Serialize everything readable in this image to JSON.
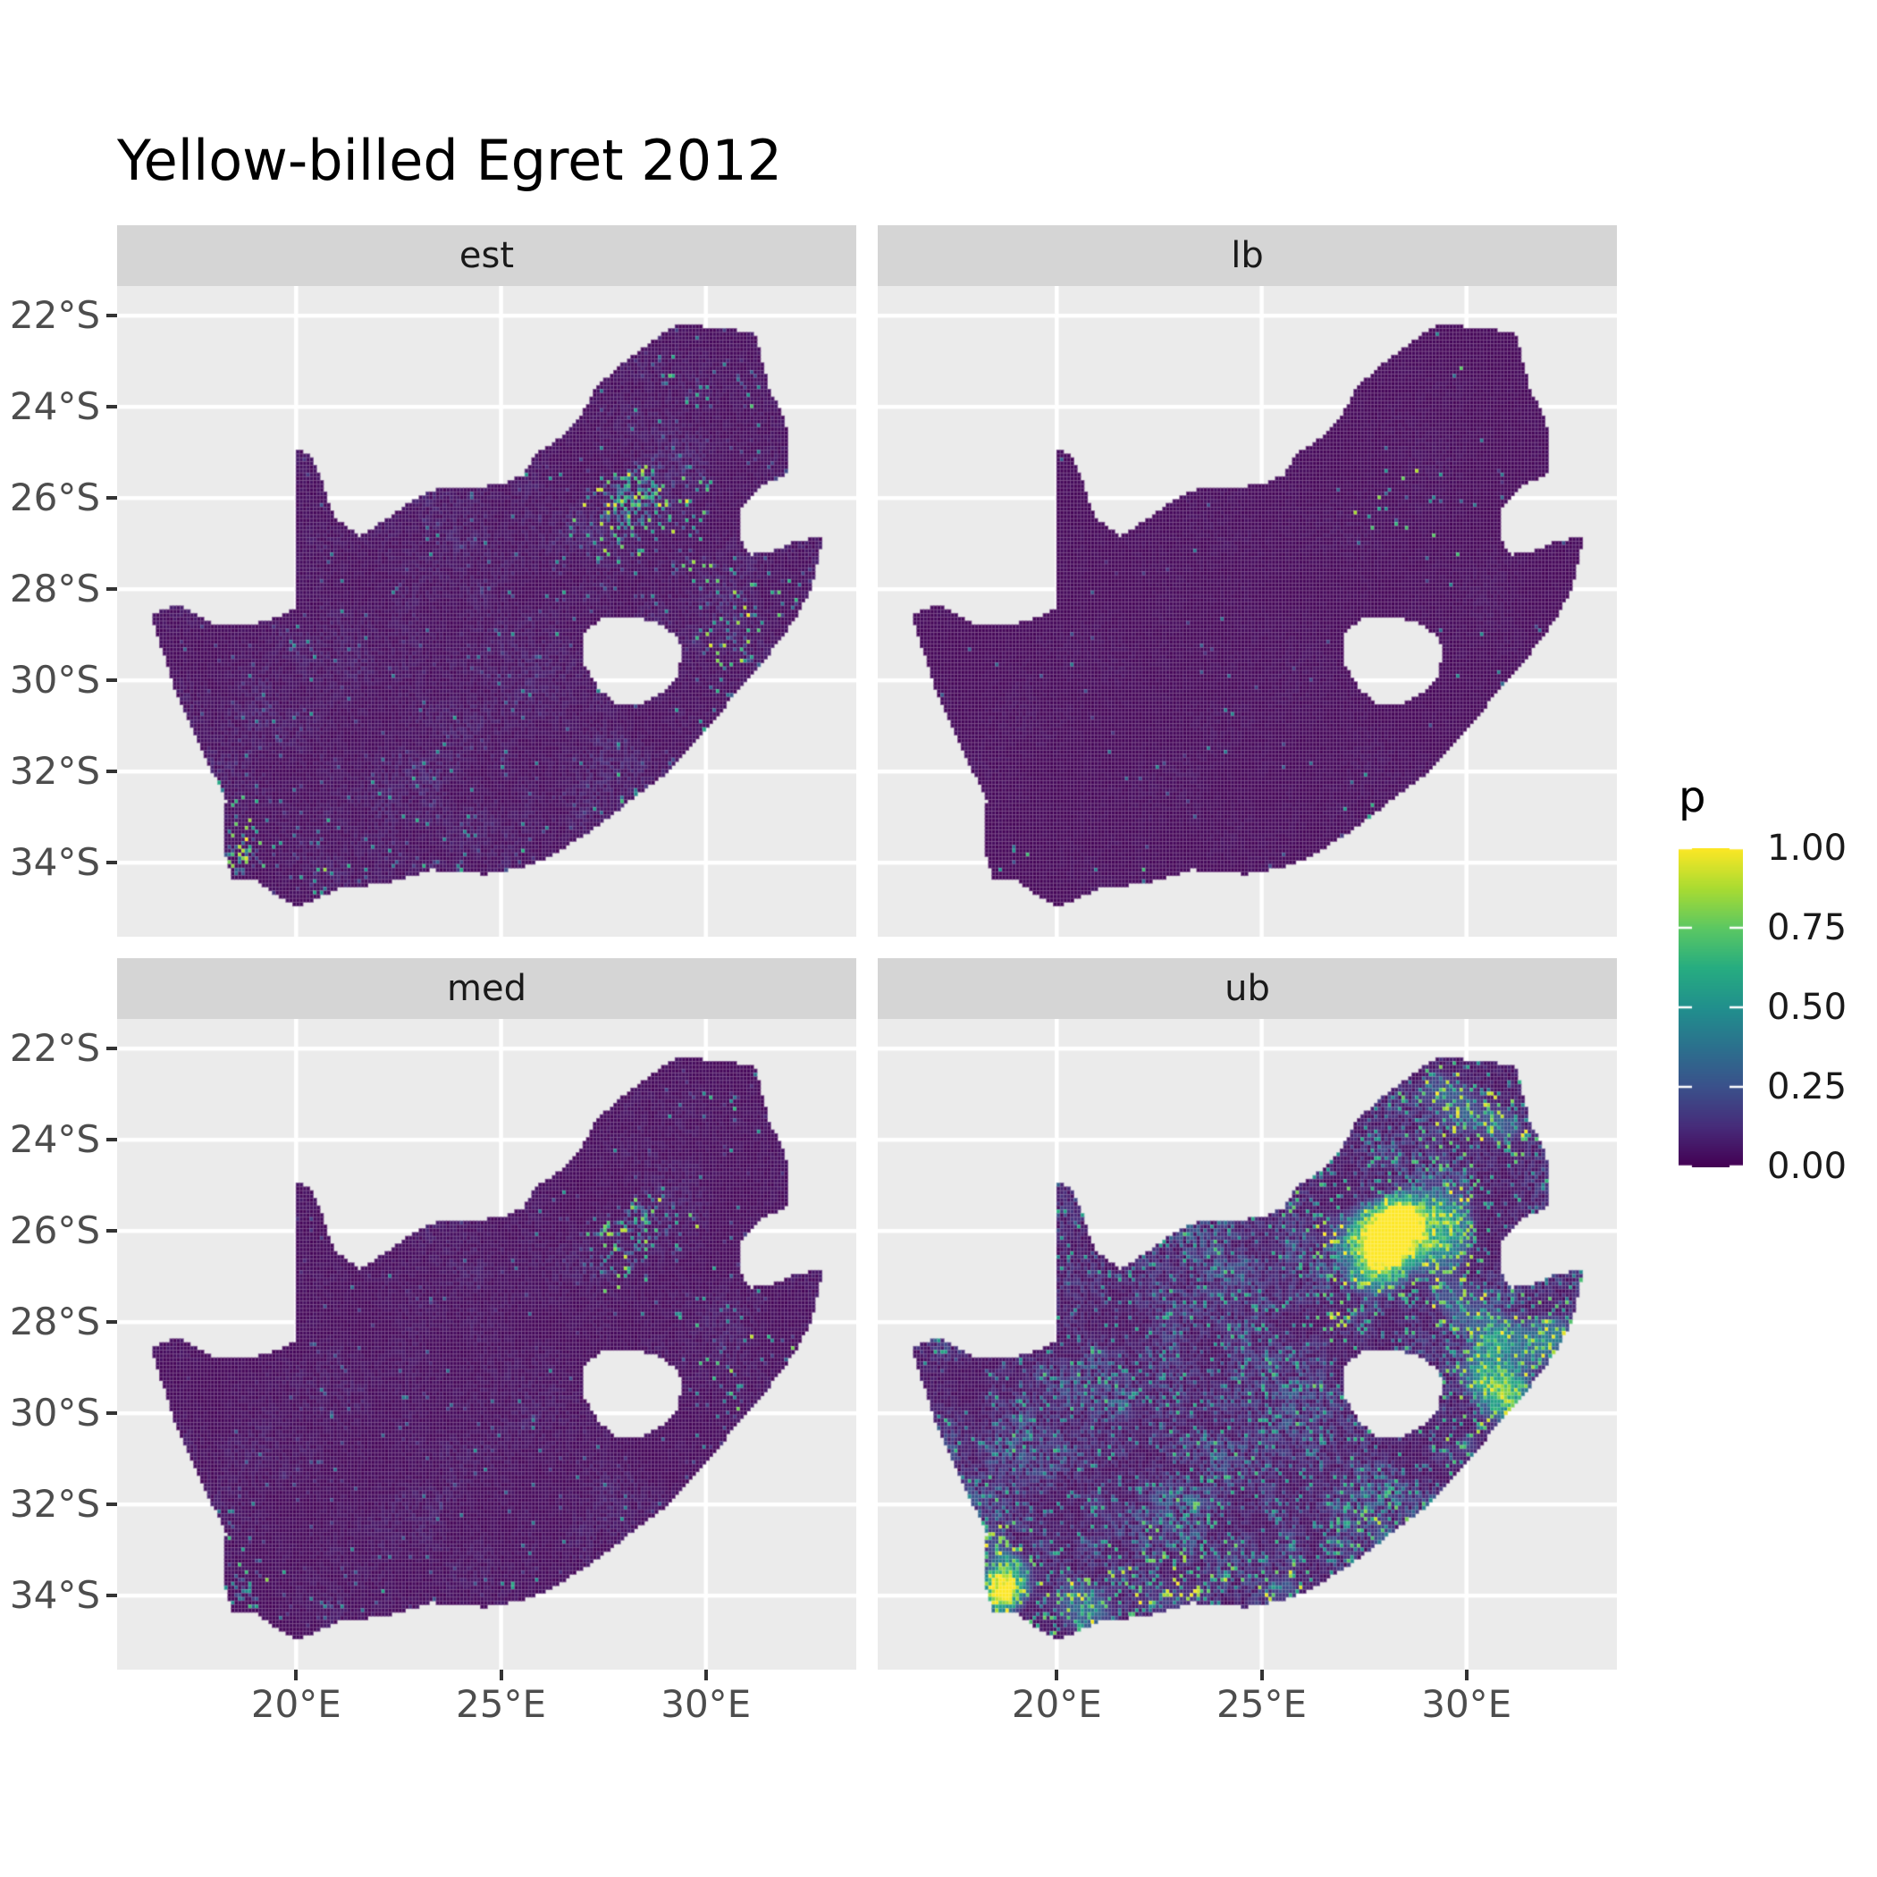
{
  "title": "Yellow-billed Egret 2012",
  "facets": [
    {
      "label": "est"
    },
    {
      "label": "lb"
    },
    {
      "label": "med"
    },
    {
      "label": "ub"
    }
  ],
  "x_axis": {
    "tick_lons": [
      20,
      25,
      30
    ],
    "tick_labels": [
      "20°E",
      "25°E",
      "30°E"
    ]
  },
  "y_axis": {
    "tick_lats": [
      -22,
      -24,
      -26,
      -28,
      -30,
      -32,
      -34
    ],
    "tick_labels": [
      "22°S",
      "24°S",
      "26°S",
      "28°S",
      "30°S",
      "32°S",
      "34°S"
    ]
  },
  "legend": {
    "title": "p",
    "breaks": [
      {
        "value": 1.0,
        "label": "1.00"
      },
      {
        "value": 0.75,
        "label": "0.75"
      },
      {
        "value": 0.5,
        "label": "0.50"
      },
      {
        "value": 0.25,
        "label": "0.25"
      },
      {
        "value": 0.0,
        "label": "0.00"
      }
    ]
  },
  "colors": {
    "background": "#FFFFFF",
    "panel_bg": "#EBEBEB",
    "strip_bg": "#D5D5D5",
    "grid": "#FFFFFF",
    "axis_text": "#4D4D4D",
    "tick_mark": "#333333",
    "strip_text": "#1A1A1A",
    "title_text": "#000000"
  },
  "chart_data": {
    "type": "heatmap",
    "title": "Yellow-billed Egret 2012",
    "region": "South Africa",
    "value_name": "p",
    "value_range": [
      0,
      1
    ],
    "x": {
      "label": null,
      "range_deg_e": [
        15.63,
        33.71
      ],
      "ticks": [
        20,
        25,
        30
      ],
      "tick_labels": [
        "20°E",
        "25°E",
        "30°E"
      ]
    },
    "y": {
      "label": null,
      "range_deg_s": [
        -35.62,
        -21.35
      ],
      "ticks": [
        -22,
        -24,
        -26,
        -28,
        -30,
        -32,
        -34
      ],
      "tick_labels": [
        "22°S",
        "24°S",
        "26°S",
        "28°S",
        "30°S",
        "32°S",
        "34°S"
      ]
    },
    "grid_cell_deg": 0.083333,
    "legend_position": "right",
    "palette": {
      "name": "viridis",
      "stops": [
        [
          68,
          1,
          84
        ],
        [
          71,
          44,
          122
        ],
        [
          59,
          81,
          139
        ],
        [
          44,
          113,
          142
        ],
        [
          33,
          144,
          141
        ],
        [
          39,
          173,
          129
        ],
        [
          92,
          200,
          99
        ],
        [
          170,
          220,
          50
        ],
        [
          253,
          231,
          37
        ]
      ]
    },
    "boundary": [
      [
        16.45,
        -28.58
      ],
      [
        17.1,
        -28.35
      ],
      [
        17.95,
        -28.75
      ],
      [
        18.75,
        -28.8
      ],
      [
        19.35,
        -28.7
      ],
      [
        19.98,
        -28.42
      ],
      [
        19.99,
        -27.6
      ],
      [
        19.99,
        -26.6
      ],
      [
        19.99,
        -25.8
      ],
      [
        19.99,
        -24.95
      ],
      [
        20.35,
        -25.05
      ],
      [
        20.6,
        -25.55
      ],
      [
        20.75,
        -26.0
      ],
      [
        20.95,
        -26.45
      ],
      [
        21.55,
        -26.85
      ],
      [
        22.15,
        -26.5
      ],
      [
        22.85,
        -26.05
      ],
      [
        23.6,
        -25.75
      ],
      [
        24.35,
        -25.78
      ],
      [
        25.05,
        -25.7
      ],
      [
        25.55,
        -25.5
      ],
      [
        25.9,
        -25.0
      ],
      [
        26.45,
        -24.7
      ],
      [
        26.9,
        -24.3
      ],
      [
        27.35,
        -23.55
      ],
      [
        28.05,
        -23.0
      ],
      [
        28.8,
        -22.5
      ],
      [
        29.35,
        -22.17
      ],
      [
        30.0,
        -22.25
      ],
      [
        30.65,
        -22.3
      ],
      [
        31.2,
        -22.4
      ],
      [
        31.55,
        -23.65
      ],
      [
        31.95,
        -24.3
      ],
      [
        32.02,
        -25.45
      ],
      [
        31.35,
        -25.72
      ],
      [
        30.85,
        -26.25
      ],
      [
        30.8,
        -26.85
      ],
      [
        31.05,
        -27.25
      ],
      [
        31.6,
        -27.2
      ],
      [
        32.15,
        -26.95
      ],
      [
        32.85,
        -26.87
      ],
      [
        32.6,
        -27.9
      ],
      [
        32.25,
        -28.55
      ],
      [
        31.6,
        -29.35
      ],
      [
        30.75,
        -30.25
      ],
      [
        30.05,
        -31.05
      ],
      [
        29.15,
        -31.95
      ],
      [
        28.2,
        -32.6
      ],
      [
        27.2,
        -33.3
      ],
      [
        26.1,
        -33.9
      ],
      [
        25.55,
        -34.1
      ],
      [
        24.6,
        -34.25
      ],
      [
        23.3,
        -34.15
      ],
      [
        22.2,
        -34.45
      ],
      [
        21.1,
        -34.55
      ],
      [
        20.05,
        -34.95
      ],
      [
        19.45,
        -34.7
      ],
      [
        19.1,
        -34.4
      ],
      [
        18.45,
        -34.35
      ],
      [
        18.3,
        -33.95
      ],
      [
        18.25,
        -33.3
      ],
      [
        18.3,
        -32.6
      ],
      [
        17.95,
        -32.0
      ],
      [
        17.55,
        -31.2
      ],
      [
        17.05,
        -30.25
      ],
      [
        16.75,
        -29.35
      ],
      [
        16.45,
        -28.58
      ]
    ],
    "lesotho_hole": [
      [
        27.0,
        -28.95
      ],
      [
        27.45,
        -28.65
      ],
      [
        28.15,
        -28.6
      ],
      [
        28.75,
        -28.7
      ],
      [
        29.25,
        -29.0
      ],
      [
        29.45,
        -29.35
      ],
      [
        29.3,
        -29.9
      ],
      [
        28.95,
        -30.25
      ],
      [
        28.35,
        -30.55
      ],
      [
        27.75,
        -30.5
      ],
      [
        27.35,
        -30.15
      ],
      [
        27.0,
        -29.6
      ]
    ],
    "hotspots": [
      [
        28.0,
        -26.2,
        0.6,
        1.0
      ],
      [
        28.35,
        -25.75,
        0.5,
        0.7
      ],
      [
        29.35,
        -26.0,
        1.0,
        0.55
      ],
      [
        26.8,
        -25.7,
        0.9,
        0.3
      ],
      [
        27.8,
        -26.9,
        0.7,
        0.45
      ],
      [
        30.2,
        -23.4,
        0.9,
        0.3
      ],
      [
        29.2,
        -22.8,
        0.7,
        0.28
      ],
      [
        31.1,
        -23.8,
        0.6,
        0.25
      ],
      [
        32.0,
        -28.4,
        0.8,
        0.5
      ],
      [
        31.0,
        -29.7,
        0.6,
        0.55
      ],
      [
        30.4,
        -29.2,
        0.7,
        0.4
      ],
      [
        30.0,
        -30.7,
        0.5,
        0.35
      ],
      [
        28.0,
        -32.8,
        0.6,
        0.3
      ],
      [
        25.6,
        -33.85,
        0.5,
        0.35
      ],
      [
        23.0,
        -34.05,
        1.3,
        0.28
      ],
      [
        20.5,
        -34.3,
        1.0,
        0.35
      ],
      [
        18.65,
        -33.95,
        0.5,
        0.85
      ],
      [
        18.9,
        -33.4,
        0.6,
        0.4
      ],
      [
        18.35,
        -32.6,
        0.5,
        0.25
      ],
      [
        26.75,
        -27.95,
        0.5,
        0.25
      ],
      [
        26.2,
        -29.1,
        0.35,
        0.2
      ],
      [
        29.8,
        -27.6,
        0.8,
        0.3
      ],
      [
        30.8,
        -28.3,
        0.5,
        0.3
      ]
    ],
    "facets": [
      {
        "label": "est",
        "seed": 11,
        "base": 0.03,
        "clusterAmp": 0.12,
        "p0": 0.013,
        "pw": 0.52,
        "pc": 0.05,
        "aMin": 0.15,
        "aPow": 1.6,
        "wBase": 0.32,
        "amp": 1.0,
        "wMul": 1.0,
        "regional": false,
        "rw": 0,
        "r0": 0,
        "rc": 0
      },
      {
        "label": "lb",
        "seed": 23,
        "base": 0.02,
        "clusterAmp": 0.04,
        "p0": 0.0025,
        "pw": 0.05,
        "pc": 0.005,
        "aMin": 0.25,
        "aPow": 1.2,
        "wBase": 0.32,
        "amp": 0.9,
        "wMul": 1.0,
        "regional": false,
        "rw": 0,
        "r0": 0,
        "rc": 0
      },
      {
        "label": "med",
        "seed": 37,
        "base": 0.025,
        "clusterAmp": 0.1,
        "p0": 0.008,
        "pw": 0.34,
        "pc": 0.03,
        "aMin": 0.15,
        "aPow": 1.7,
        "wBase": 0.3,
        "amp": 0.95,
        "wMul": 1.0,
        "regional": false,
        "rw": 0,
        "r0": 0,
        "rc": 0
      },
      {
        "label": "ub",
        "seed": 53,
        "base": 0.05,
        "clusterAmp": 0.45,
        "p0": 0.05,
        "pw": 0.9,
        "pc": 0.25,
        "aMin": 0.3,
        "aPow": 1.1,
        "wBase": 0.5,
        "amp": 1.0,
        "wMul": 1.35,
        "regional": true,
        "rw": 1.45,
        "r0": 0.38,
        "rc": 0.5
      }
    ]
  }
}
